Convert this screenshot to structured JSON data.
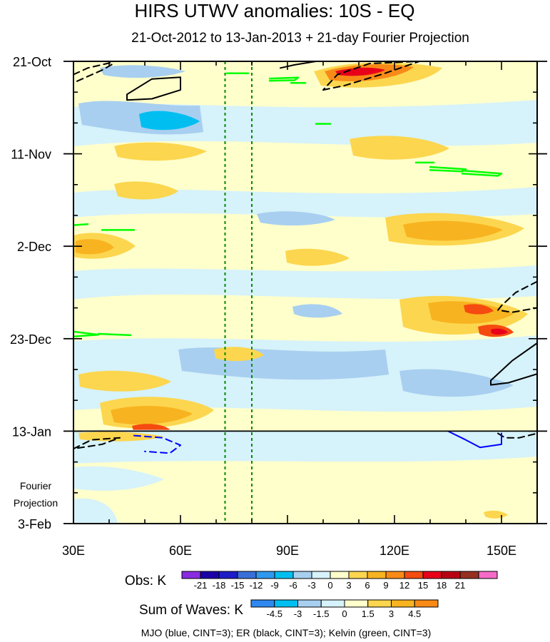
{
  "chart_data": {
    "type": "heatmap",
    "title": "HIRS UTWV anomalies: 10S - EQ",
    "subtitle": "21-Oct-2012 to 13-Jan-2013 + 21-day Fourier Projection",
    "x_axis": {
      "range": [
        30,
        160
      ],
      "tick_values": [
        30,
        60,
        90,
        120,
        150
      ],
      "tick_labels": [
        "30E",
        "60E",
        "90E",
        "120E",
        "150E"
      ]
    },
    "y_axis": {
      "range_days": [
        0,
        105
      ],
      "tick_days": [
        0,
        21,
        42,
        63,
        84,
        105
      ],
      "tick_labels": [
        "21-Oct",
        "11-Nov",
        "2-Dec",
        "23-Dec",
        "13-Jan",
        "3-Feb"
      ],
      "direction": "time increases downward"
    },
    "projection_label": [
      "Fourier",
      "Projection"
    ],
    "observation_end_day": 84,
    "reference_longitudes": [
      72.5,
      80
    ],
    "obs_colorbar": {
      "label": "Obs: K",
      "levels": [
        "-21",
        "-18",
        "-15",
        "-12",
        "-9",
        "-6",
        "-3",
        "0",
        "3",
        "6",
        "9",
        "12",
        "15",
        "18",
        "21"
      ],
      "colors": [
        "#8a2be2",
        "#1c00a8",
        "#1d1dc8",
        "#3a6fd8",
        "#2f99f0",
        "#00bff0",
        "#a8cff0",
        "#d6f2fa",
        "#ffffcc",
        "#fcd64e",
        "#f8b320",
        "#f88a18",
        "#f54a10",
        "#e8001a",
        "#b80012",
        "#963020",
        "#f66ac8"
      ]
    },
    "wave_colorbar": {
      "label": "Sum of Waves: K",
      "levels": [
        "-4.5",
        "-3",
        "-1.5",
        "0",
        "1.5",
        "3",
        "4.5"
      ],
      "colors": [
        "#2f88f0",
        "#00bff0",
        "#a8cff0",
        "#d6f2fa",
        "#ffffcc",
        "#fcd64e",
        "#f8b320",
        "#f88a18"
      ]
    },
    "footer": "MJO (blue, CINT=3); ER (black, CINT=3); Kelvin (green, CINT=3)",
    "contours": [
      {
        "wave": "ER",
        "color": "#000000",
        "style": "dashed",
        "points": [
          [
            30,
            3
          ],
          [
            34,
            1.5
          ],
          [
            41,
            0.2
          ]
        ]
      },
      {
        "wave": "ER",
        "color": "#000000",
        "style": "dashed",
        "points": [
          [
            31,
            4.5
          ],
          [
            38,
            2
          ],
          [
            41,
            0.6
          ]
        ]
      },
      {
        "wave": "ER",
        "color": "#000000",
        "style": "solid",
        "points": [
          [
            45,
            7.5
          ],
          [
            52,
            4
          ],
          [
            60,
            3.6
          ],
          [
            60,
            6.5
          ],
          [
            52,
            8.5
          ],
          [
            45,
            8.8
          ],
          [
            45,
            7.5
          ]
        ]
      },
      {
        "wave": "ER",
        "color": "#000000",
        "style": "solid",
        "points": [
          [
            88,
            1.5
          ],
          [
            92,
            0.8
          ],
          [
            98,
            0
          ]
        ]
      },
      {
        "wave": "ER",
        "color": "#000000",
        "style": "dashed",
        "points": [
          [
            100,
            6.5
          ],
          [
            106,
            5.5
          ],
          [
            117,
            2.8
          ],
          [
            127,
            0
          ],
          [
            113,
            0.5
          ],
          [
            104,
            3
          ],
          [
            100,
            6.5
          ]
        ]
      },
      {
        "wave": "ER",
        "color": "#000000",
        "style": "dashed",
        "points": [
          [
            160,
            50
          ],
          [
            154,
            52.5
          ],
          [
            150,
            55.5
          ],
          [
            149,
            56.5
          ],
          [
            153,
            57
          ],
          [
            160,
            56
          ]
        ]
      },
      {
        "wave": "ER",
        "color": "#000000",
        "style": "solid",
        "points": [
          [
            160,
            64
          ],
          [
            153,
            68
          ],
          [
            147,
            72.5
          ],
          [
            147,
            73.5
          ],
          [
            152,
            73
          ],
          [
            160,
            71
          ]
        ]
      },
      {
        "wave": "ER",
        "color": "#000000",
        "style": "dashed",
        "points": [
          [
            30,
            88
          ],
          [
            35,
            86
          ],
          [
            43,
            85.5
          ],
          [
            38,
            87
          ],
          [
            30,
            88
          ]
        ]
      },
      {
        "wave": "ER",
        "color": "#000000",
        "style": "dashed",
        "points": [
          [
            149,
            84.5
          ],
          [
            151,
            85.5
          ],
          [
            155,
            85.5
          ],
          [
            160,
            84.5
          ]
        ]
      },
      {
        "wave": "MJO",
        "color": "#0000ff",
        "style": "dashed",
        "points": [
          [
            47,
            85
          ],
          [
            55,
            85.5
          ],
          [
            60,
            87.2
          ],
          [
            57,
            89
          ],
          [
            50,
            88.6
          ]
        ]
      },
      {
        "wave": "MJO",
        "color": "#0000ff",
        "style": "solid",
        "points": [
          [
            135,
            84
          ],
          [
            140,
            86
          ],
          [
            144,
            87.7
          ],
          [
            150,
            87
          ],
          [
            150,
            84.5
          ]
        ]
      },
      {
        "wave": "Kelvin",
        "color": "#00ff00",
        "style": "solid",
        "points": [
          [
            73,
            2.7
          ],
          [
            79,
            2.7
          ]
        ]
      },
      {
        "wave": "Kelvin",
        "color": "#00ff00",
        "style": "solid",
        "points": [
          [
            85,
            3.9
          ],
          [
            93,
            3.7
          ],
          [
            92,
            4.3
          ],
          [
            85,
            4.4
          ]
        ]
      },
      {
        "wave": "Kelvin",
        "color": "#00ff00",
        "style": "solid",
        "points": [
          [
            91,
            4.9
          ],
          [
            95,
            4.9
          ]
        ]
      },
      {
        "wave": "Kelvin",
        "color": "#00ff00",
        "style": "solid",
        "points": [
          [
            98,
            14.2
          ],
          [
            102,
            14.2
          ]
        ]
      },
      {
        "wave": "Kelvin",
        "color": "#00ff00",
        "style": "solid",
        "points": [
          [
            126,
            23
          ],
          [
            131,
            23
          ]
        ]
      },
      {
        "wave": "Kelvin",
        "color": "#00ff00",
        "style": "solid",
        "points": [
          [
            130,
            24
          ],
          [
            140,
            24.5
          ],
          [
            139,
            25
          ],
          [
            130,
            24.7
          ]
        ]
      },
      {
        "wave": "Kelvin",
        "color": "#00ff00",
        "style": "solid",
        "points": [
          [
            139,
            24.8
          ],
          [
            150,
            25.5
          ],
          [
            149,
            26
          ],
          [
            139,
            25.5
          ]
        ]
      },
      {
        "wave": "Kelvin",
        "color": "#00ff00",
        "style": "solid",
        "points": [
          [
            30,
            37.2
          ],
          [
            34,
            37
          ]
        ]
      },
      {
        "wave": "Kelvin",
        "color": "#00ff00",
        "style": "solid",
        "points": [
          [
            38,
            38.3
          ],
          [
            47,
            38.3
          ]
        ]
      },
      {
        "wave": "Kelvin",
        "color": "#00ff00",
        "style": "solid",
        "points": [
          [
            30,
            61.4
          ],
          [
            37,
            62.1
          ],
          [
            30,
            62.5
          ]
        ]
      },
      {
        "wave": "Kelvin",
        "color": "#00ff00",
        "style": "solid",
        "points": [
          [
            37,
            61.9
          ],
          [
            46,
            62.2
          ]
        ]
      }
    ]
  }
}
